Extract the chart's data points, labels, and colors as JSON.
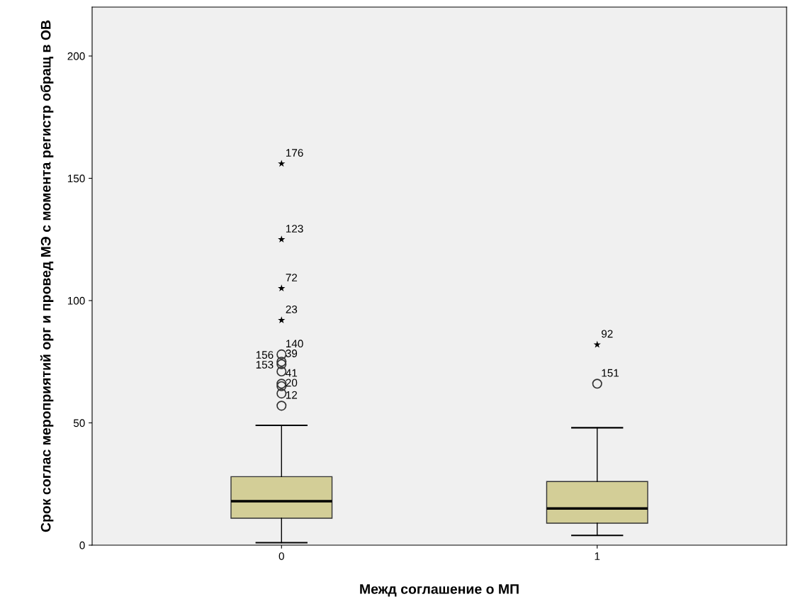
{
  "chart_data": {
    "type": "box",
    "xlabel": "Межд соглашение о МП",
    "ylabel": "Срок соглас мероприятий орг и провед МЭ с момента регистр обращ в ОВ",
    "categories": [
      "0",
      "1"
    ],
    "color": "#d3ce97",
    "ylim": [
      0,
      220
    ],
    "yticks": [
      0,
      50,
      100,
      150,
      200
    ],
    "grid": false,
    "legend": false,
    "boxes": [
      {
        "low": 1,
        "q1": 11,
        "median": 18,
        "q3": 28,
        "high": 49
      },
      {
        "low": 4,
        "q1": 9,
        "median": 15,
        "q3": 26,
        "high": 48
      }
    ],
    "series": [
      {
        "type": "scatter",
        "marker": "star",
        "color": "#000000",
        "x": [
          "0",
          "0",
          "0",
          "0",
          "1"
        ],
        "values": [
          156,
          125,
          105,
          92,
          82
        ]
      },
      {
        "type": "scatter",
        "marker": "circle",
        "color": "#333333",
        "x": [
          "0",
          "0",
          "0",
          "0",
          "0",
          "0",
          "0",
          "0",
          "1"
        ],
        "values": [
          78,
          75,
          74,
          71,
          66,
          65,
          62,
          57,
          66
        ]
      }
    ],
    "annotations": [
      {
        "text": "176",
        "x": "0",
        "y": 156
      },
      {
        "text": "123",
        "x": "0",
        "y": 125
      },
      {
        "text": "72",
        "x": "0",
        "y": 105
      },
      {
        "text": "23",
        "x": "0",
        "y": 92
      },
      {
        "text": "140",
        "x": "0",
        "y": 78
      },
      {
        "text": "156",
        "x": "0",
        "y": 75
      },
      {
        "text": "39",
        "x": "0",
        "y": 74
      },
      {
        "text": "153",
        "x": "0",
        "y": 71
      },
      {
        "text": "41",
        "x": "0",
        "y": 66
      },
      {
        "text": "20",
        "x": "0",
        "y": 62
      },
      {
        "text": "12",
        "x": "0",
        "y": 57
      },
      {
        "text": "92",
        "x": "1",
        "y": 82
      },
      {
        "text": "151",
        "x": "1",
        "y": 66
      }
    ]
  }
}
